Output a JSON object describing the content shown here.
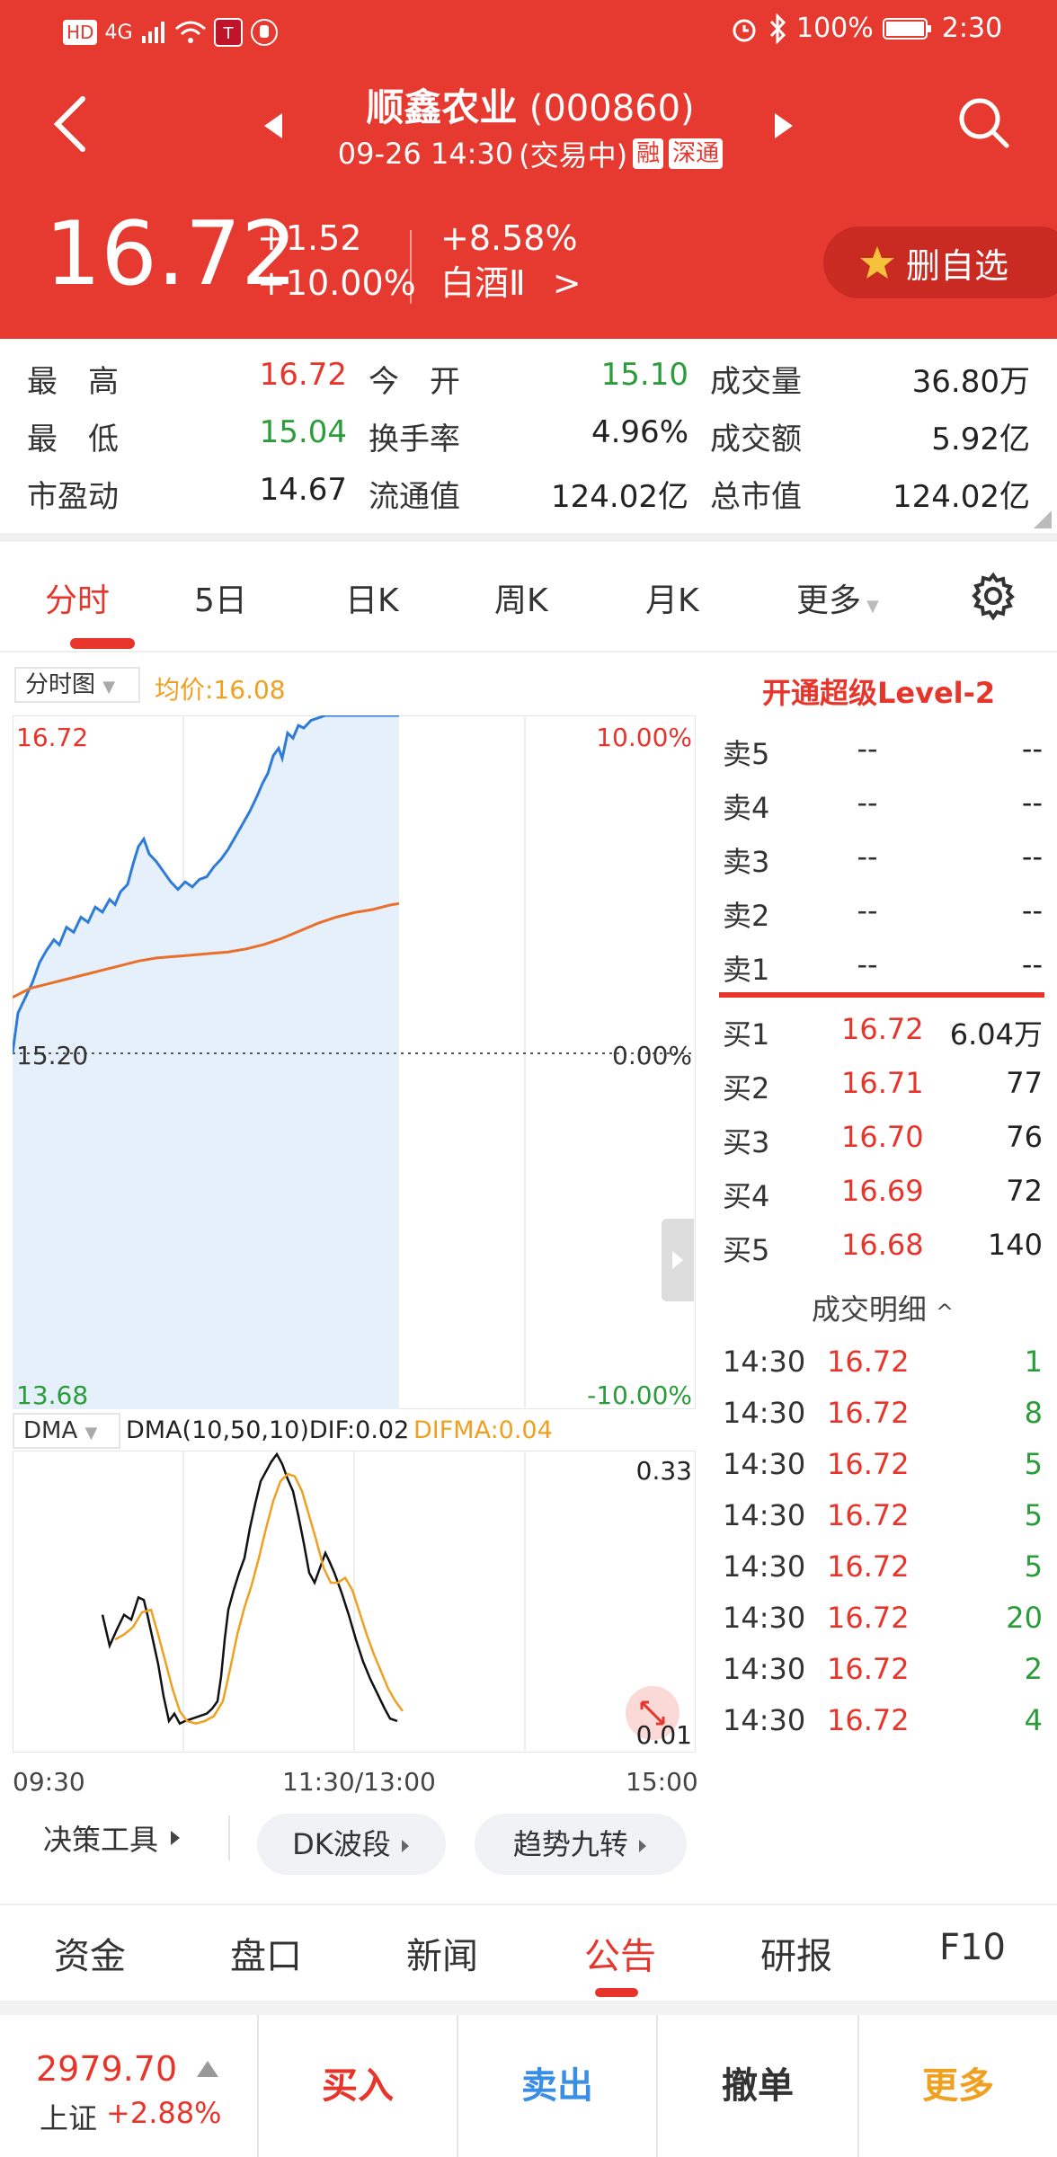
{
  "status_bar": {
    "battery": "100%",
    "time": "2:30",
    "hd": "HD",
    "network": "4G"
  },
  "header": {
    "stock_name": "顺鑫农业",
    "stock_code": "(000860)",
    "datetime": "09-26 14:30",
    "trade_status": "(交易中)",
    "badge_rong": "融",
    "badge_shentong": "深通",
    "price": "16.72",
    "change": "+1.52",
    "change_pct": "+10.00%",
    "sector_pct": "+8.58%",
    "sector_name": "白酒Ⅱ",
    "sector_arrow": ">",
    "watch_button": "删自选"
  },
  "stats": [
    {
      "label": "最　高",
      "value": "16.72",
      "color": "red"
    },
    {
      "label": "今　开",
      "value": "15.10",
      "color": "green"
    },
    {
      "label": "成交量",
      "value": "36.80万",
      "color": "normal"
    },
    {
      "label": "最　低",
      "value": "15.04",
      "color": "green"
    },
    {
      "label": "换手率",
      "value": "4.96%",
      "color": "normal"
    },
    {
      "label": "成交额",
      "value": "5.92亿",
      "color": "normal"
    },
    {
      "label": "市盈动",
      "value": "14.67",
      "color": "normal"
    },
    {
      "label": "流通值",
      "value": "124.02亿",
      "color": "normal"
    },
    {
      "label": "总市值",
      "value": "124.02亿",
      "color": "normal"
    }
  ],
  "chart_tabs": [
    "分时",
    "5日",
    "日K",
    "周K",
    "月K",
    "更多"
  ],
  "chart_header": {
    "selector": "分时图",
    "avg_price": "均价:16.08"
  },
  "level2_link": "开通超级Level-2",
  "price_axis": {
    "top": "16.72",
    "mid": "15.20",
    "bottom": "13.68",
    "top_pct": "10.00%",
    "mid_pct": "0.00%",
    "bottom_pct": "-10.00%"
  },
  "indicator": {
    "selector": "DMA",
    "params": "DMA(10,50,10)DIF:0.02",
    "difma": "DIFMA:0.04",
    "max": "0.33",
    "min": "0.01"
  },
  "time_axis": {
    "start": "09:30",
    "mid": "11:30/13:00",
    "end": "15:00"
  },
  "sell_orders": [
    {
      "label": "卖5",
      "price": "--",
      "vol": "--"
    },
    {
      "label": "卖4",
      "price": "--",
      "vol": "--"
    },
    {
      "label": "卖3",
      "price": "--",
      "vol": "--"
    },
    {
      "label": "卖2",
      "price": "--",
      "vol": "--"
    },
    {
      "label": "卖1",
      "price": "--",
      "vol": "--"
    }
  ],
  "buy_orders": [
    {
      "label": "买1",
      "price": "16.72",
      "vol": "6.04万"
    },
    {
      "label": "买2",
      "price": "16.71",
      "vol": "77"
    },
    {
      "label": "买3",
      "price": "16.70",
      "vol": "76"
    },
    {
      "label": "买4",
      "price": "16.69",
      "vol": "72"
    },
    {
      "label": "买5",
      "price": "16.68",
      "vol": "140"
    }
  ],
  "ticks_title": "成交明细",
  "ticks": [
    {
      "time": "14:30",
      "price": "16.72",
      "vol": "1"
    },
    {
      "time": "14:30",
      "price": "16.72",
      "vol": "8"
    },
    {
      "time": "14:30",
      "price": "16.72",
      "vol": "5"
    },
    {
      "time": "14:30",
      "price": "16.72",
      "vol": "5"
    },
    {
      "time": "14:30",
      "price": "16.72",
      "vol": "5"
    },
    {
      "time": "14:30",
      "price": "16.72",
      "vol": "20"
    },
    {
      "time": "14:30",
      "price": "16.72",
      "vol": "2"
    },
    {
      "time": "14:30",
      "price": "16.72",
      "vol": "4"
    }
  ],
  "tools": {
    "decision": "决策工具",
    "dk": "DK波段",
    "trend": "趋势九转"
  },
  "bottom_tabs": [
    "资金",
    "盘口",
    "新闻",
    "公告",
    "研报",
    "F10"
  ],
  "index": {
    "value": "2979.70",
    "name": "上证",
    "change": "+2.88%"
  },
  "actions": {
    "buy": "买入",
    "sell": "卖出",
    "cancel": "撤单",
    "more": "更多"
  }
}
